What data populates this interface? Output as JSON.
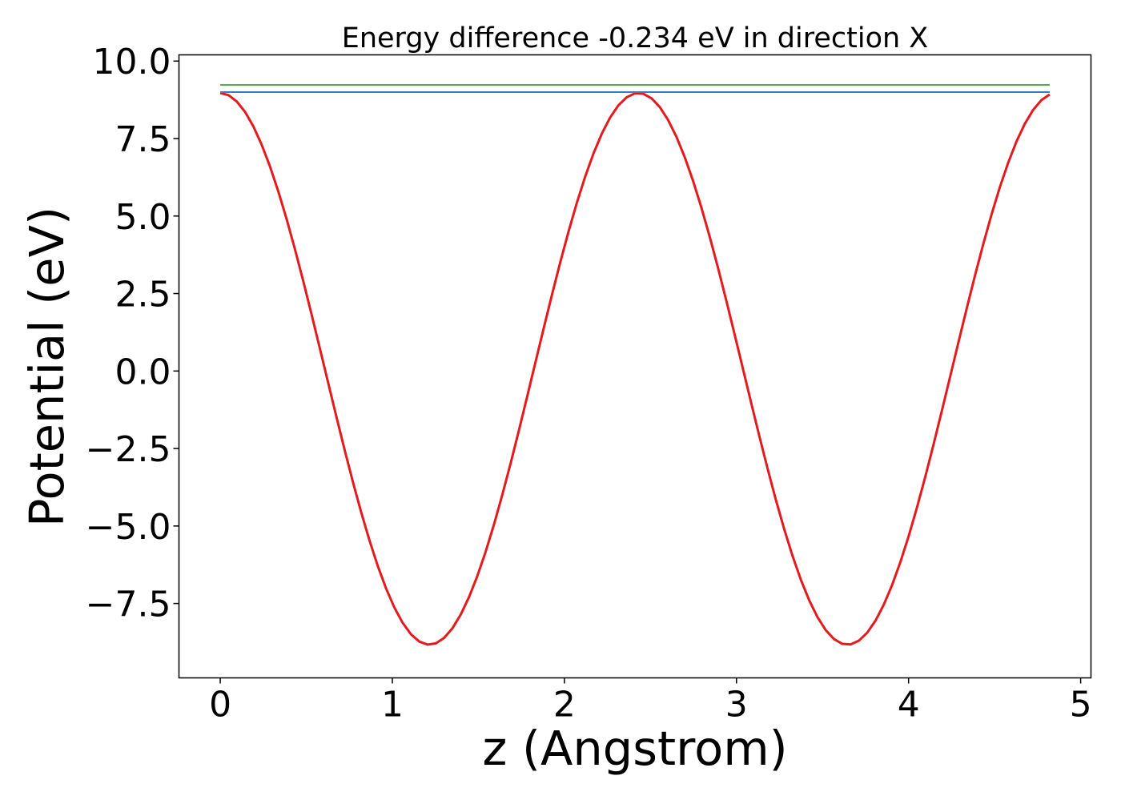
{
  "chart_data": {
    "type": "line",
    "title": "Energy difference -0.234 eV in direction X",
    "xlabel": "z (Angstrom)",
    "ylabel": "Potential (eV)",
    "xlim": [
      -0.24,
      5.06
    ],
    "ylim": [
      -9.9,
      10.2
    ],
    "xticks": [
      0,
      1,
      2,
      3,
      4,
      5
    ],
    "xtick_labels": [
      "0",
      "1",
      "2",
      "3",
      "4",
      "5"
    ],
    "yticks": [
      -7.5,
      -5.0,
      -2.5,
      0.0,
      2.5,
      5.0,
      7.5,
      10.0
    ],
    "ytick_labels": [
      "−7.5",
      "−5.0",
      "−2.5",
      "0.0",
      "2.5",
      "5.0",
      "7.5",
      "10.0"
    ],
    "grid": false,
    "legend": false,
    "series": [
      {
        "color": "#e41a1c",
        "kind": "cosine",
        "x_start": 0.0,
        "x_end": 4.82,
        "period": 2.43,
        "amplitude": 8.9,
        "offset": 0.07
      },
      {
        "color": "#377eb8",
        "kind": "constant",
        "x_start": 0.0,
        "x_end": 4.82,
        "y": 9.0
      },
      {
        "color": "#4daf4a",
        "kind": "constant",
        "x_start": 0.0,
        "x_end": 4.82,
        "y": 9.23
      }
    ]
  }
}
